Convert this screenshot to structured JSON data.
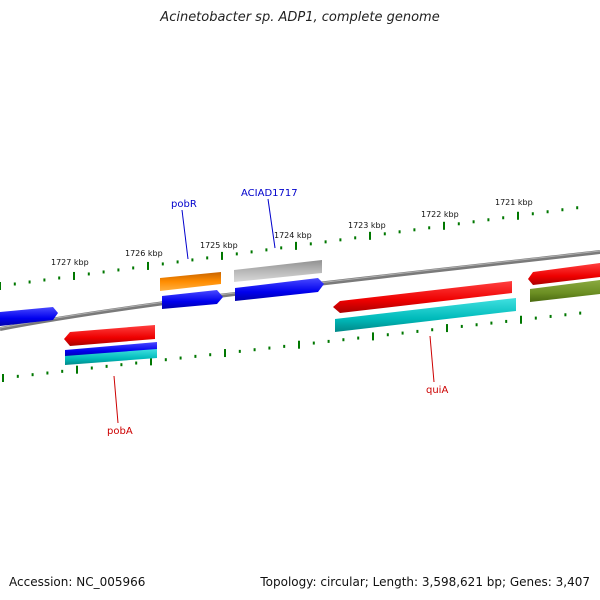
{
  "title": "Acinetobacter sp. ADP1, complete genome",
  "footer": {
    "accession": "Accession: NC_005966",
    "topology": "Topology: circular; Length: 3,598,621 bp; Genes: 3,407"
  },
  "colors": {
    "backbone": "#808080",
    "tick": "#007700",
    "label_blue": "#0000cc",
    "label_red": "#cc0000"
  },
  "scale_labels": [
    "1727 kbp",
    "1726 kbp",
    "1725 kbp",
    "1724 kbp",
    "1723 kbp",
    "1722 kbp",
    "1721 kbp"
  ],
  "gene_labels": [
    {
      "text": "pobR",
      "color": "#0000cc"
    },
    {
      "text": "ACIAD1717",
      "color": "#0000cc"
    },
    {
      "text": "pobA",
      "color": "#cc0000"
    },
    {
      "text": "quiA",
      "color": "#cc0000"
    }
  ],
  "features": [
    {
      "name": "feature-blue-left",
      "color": "#0000ee"
    },
    {
      "name": "feature-red-pobA",
      "color": "#ee0000"
    },
    {
      "name": "feature-blue-pobA",
      "color": "#0000cc"
    },
    {
      "name": "feature-cyan-pobA",
      "color": "#00cccc"
    },
    {
      "name": "feature-orange-pobR",
      "color": "#ff8c00"
    },
    {
      "name": "feature-blue-pobR",
      "color": "#0000ee"
    },
    {
      "name": "feature-gray-ACIAD1717",
      "color": "#b0b0b0"
    },
    {
      "name": "feature-blue-ACIAD1717",
      "color": "#0000ee"
    },
    {
      "name": "feature-red-quiA",
      "color": "#ee0000"
    },
    {
      "name": "feature-cyan-quiA",
      "color": "#00bbbb"
    },
    {
      "name": "feature-red-right",
      "color": "#ee0000"
    },
    {
      "name": "feature-olive-right",
      "color": "#6b8e23"
    }
  ]
}
